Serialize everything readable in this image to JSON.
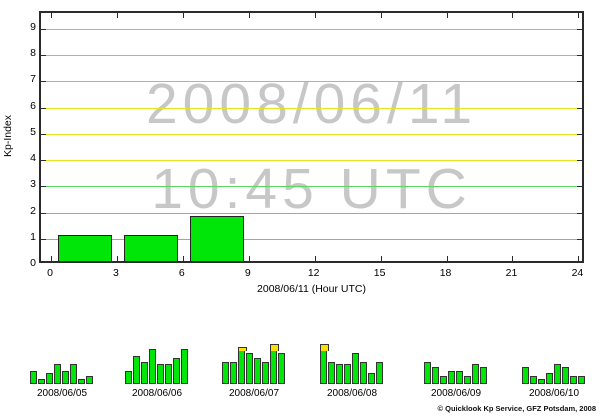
{
  "colors": {
    "bar_fill": "#00e608",
    "bar_border": "#222222",
    "yellow_cap": "#ffdf00",
    "grid_green": "#5cd65c",
    "grid_yellow": "#e6e61e",
    "grid_red": "#ff8f8f",
    "axis": "#2b2b2b",
    "watermark": "#c7c7c7"
  },
  "watermark": {
    "date": "2008/06/11",
    "time": "10:45 UTC"
  },
  "axes": {
    "ylabel": "Kp-Index",
    "xlabel": "2008/06/11 (Hour UTC)"
  },
  "footer": {
    "copyright": "© Quicklook Kp Service, GFZ Potsdam, 2008"
  },
  "chart_data": [
    {
      "type": "bar",
      "title": "Quicklook Kp index for 2008/06/11 as of 10:45 UTC",
      "xlabel": "2008/06/11 (Hour UTC)",
      "ylabel": "Kp-Index",
      "xlim": [
        -0.5,
        24.3
      ],
      "ylim": [
        0,
        9.6
      ],
      "xticks": [
        0,
        3,
        6,
        9,
        12,
        15,
        18,
        21,
        24
      ],
      "yticks": [
        0,
        1,
        2,
        3,
        4,
        5,
        6,
        7,
        8,
        9
      ],
      "grid": "on",
      "grid_zones": {
        "green": [
          1,
          2,
          3
        ],
        "yellow": [
          4,
          5,
          6
        ],
        "red": [
          7,
          8,
          9
        ]
      },
      "bars": [
        {
          "hour_start": 0,
          "hour_end": 3,
          "kp": 1.0
        },
        {
          "hour_start": 3,
          "hour_end": 6,
          "kp": 1.0
        },
        {
          "hour_start": 6,
          "hour_end": 9,
          "kp": 1.7
        }
      ]
    },
    {
      "type": "bar",
      "title": "Previous days: eight 3-hour Kp values per day",
      "yellow_threshold": 3.7,
      "days": [
        {
          "date": "2008/06/05",
          "values": [
            1.3,
            0.3,
            1.0,
            2.0,
            1.3,
            2.0,
            0.3,
            0.7
          ]
        },
        {
          "date": "2008/06/06",
          "values": [
            1.3,
            3.0,
            2.3,
            3.7,
            2.0,
            2.0,
            2.7,
            3.7
          ]
        },
        {
          "date": "2008/06/07",
          "values": [
            2.3,
            2.3,
            4.0,
            3.3,
            2.7,
            2.3,
            4.3,
            3.3
          ]
        },
        {
          "date": "2008/06/08",
          "values": [
            4.3,
            2.3,
            2.0,
            2.0,
            3.3,
            2.3,
            1.0,
            2.3
          ]
        },
        {
          "date": "2008/06/09",
          "values": [
            2.3,
            1.7,
            0.7,
            1.3,
            1.3,
            0.7,
            2.0,
            1.7
          ]
        },
        {
          "date": "2008/06/10",
          "values": [
            1.7,
            0.7,
            0.3,
            1.0,
            2.0,
            1.7,
            0.7,
            0.7
          ]
        }
      ]
    }
  ]
}
